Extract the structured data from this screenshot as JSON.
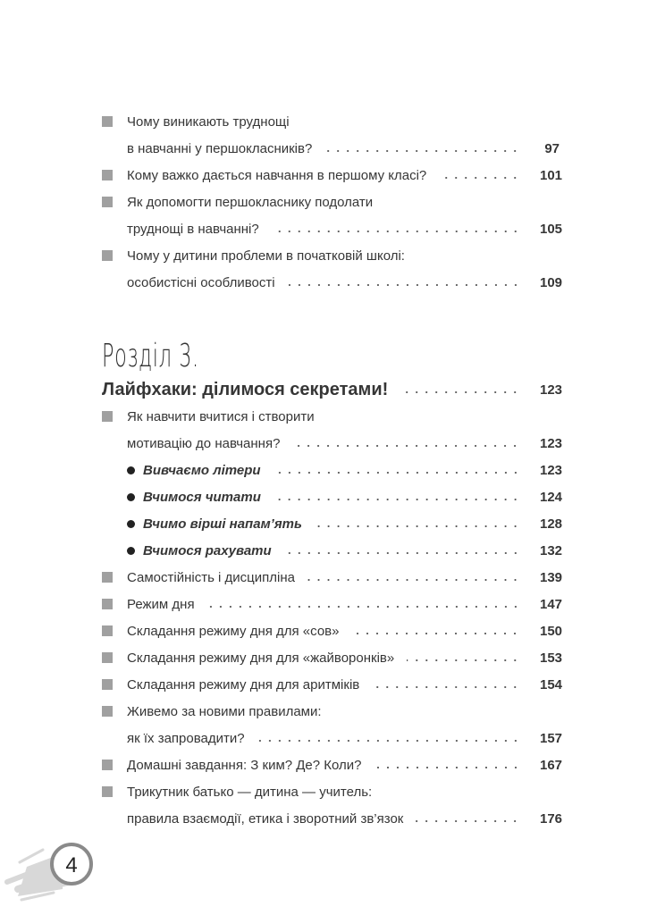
{
  "section_top": [
    {
      "type": "square",
      "text": "Чому виникають труднощі"
    },
    {
      "type": "cont",
      "text": "в навчанні у першокласників?",
      "page": "97"
    },
    {
      "type": "square",
      "text": "Кому важко дається навчання в першому класі?",
      "page": "101"
    },
    {
      "type": "square",
      "text": "Як допомогти першокласнику подолати"
    },
    {
      "type": "cont",
      "text": "труднощі в навчанні?",
      "page": "105"
    },
    {
      "type": "square",
      "text": "Чому у дитини проблеми в початковій школі:"
    },
    {
      "type": "cont",
      "text": "особистісні особливості",
      "page": "109"
    }
  ],
  "chapter_heading": "Розділ 3.",
  "section_chapter3": [
    {
      "type": "bold",
      "text": "Лайфхаки: ділимося секретами!",
      "page": "123"
    },
    {
      "type": "square",
      "text": "Як навчити вчитися і створити"
    },
    {
      "type": "cont",
      "text": "мотивацію до навчання?",
      "page": "123"
    },
    {
      "type": "bullet",
      "text": "Вивчаємо літери",
      "page": "123"
    },
    {
      "type": "bullet",
      "text": "Вчимося читати",
      "page": "124"
    },
    {
      "type": "bullet",
      "text": "Вчимо вірші напам’ять",
      "page": "128"
    },
    {
      "type": "bullet",
      "text": "Вчимося рахувати",
      "page": "132"
    },
    {
      "type": "square",
      "text": "Самостійність і дисципліна",
      "page": "139"
    },
    {
      "type": "square",
      "text": "Режим дня",
      "page": "147"
    },
    {
      "type": "square",
      "text": "Складання режиму дня для «сов»",
      "page": "150"
    },
    {
      "type": "square",
      "text": "Складання режиму дня для «жайворонків»",
      "page": "153"
    },
    {
      "type": "square",
      "text": "Складання режиму дня для аритміків",
      "page": "154"
    },
    {
      "type": "square",
      "text": "Живемо за новими правилами:"
    },
    {
      "type": "cont",
      "text": "як їх запровадити?",
      "page": "157"
    },
    {
      "type": "square",
      "text": "Домашні завдання: З ким? Де? Коли?",
      "page": "167"
    },
    {
      "type": "square",
      "text": "Трикутник батько — дитина — учитель:"
    },
    {
      "type": "cont",
      "text": "правила взаємодії, етика і зворотний зв’язок",
      "page": "176"
    }
  ],
  "page_number": "4",
  "colors": {
    "text": "#363636",
    "square": "#a0a0a0",
    "badge_ring": "#8a8a8a",
    "streaks": "#d8d8d8"
  }
}
